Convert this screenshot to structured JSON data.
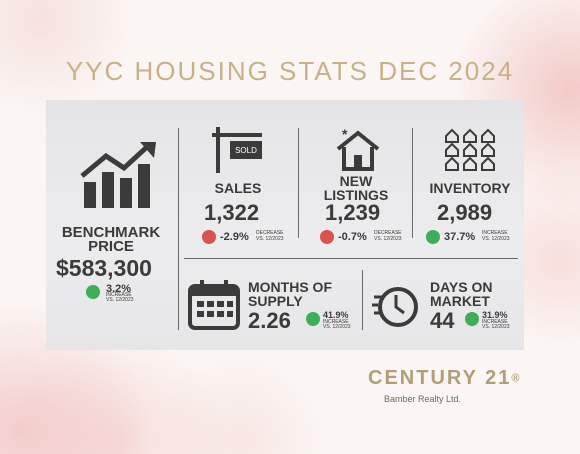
{
  "header": {
    "title": "YYC HOUSING STATS DEC 2024"
  },
  "stats": [
    {
      "label": "BENCHMARK PRICE",
      "value": "$583,300",
      "change": "3.2%",
      "direction": "INCREASE",
      "period": "VS. 12/2023"
    },
    {
      "label": "SALES",
      "value": "1,322",
      "change": "-2.9%",
      "direction": "DECREASE",
      "period": "VS. 12/2023"
    },
    {
      "label": "NEW LISTINGS",
      "value": "1,239",
      "change": "-0.7%",
      "direction": "DECREASE",
      "period": "VS. 12/2023"
    },
    {
      "label": "INVENTORY",
      "value": "2,989",
      "change": "37.7%",
      "direction": "INCREASE",
      "period": "VS. 12/2023"
    },
    {
      "label": "MONTHS OF SUPPLY",
      "value": "2.26",
      "change": "41.9%",
      "direction": "INCREASE",
      "period": "VS. 12/2023"
    },
    {
      "label": "DAYS ON MARKET",
      "value": "44",
      "change": "31.9%",
      "direction": "INCREASE",
      "period": "VS. 12/2023"
    }
  ],
  "footer": {
    "brand": "CENTURY 21",
    "mark": "®",
    "office": "Bamber Realty Ltd."
  }
}
